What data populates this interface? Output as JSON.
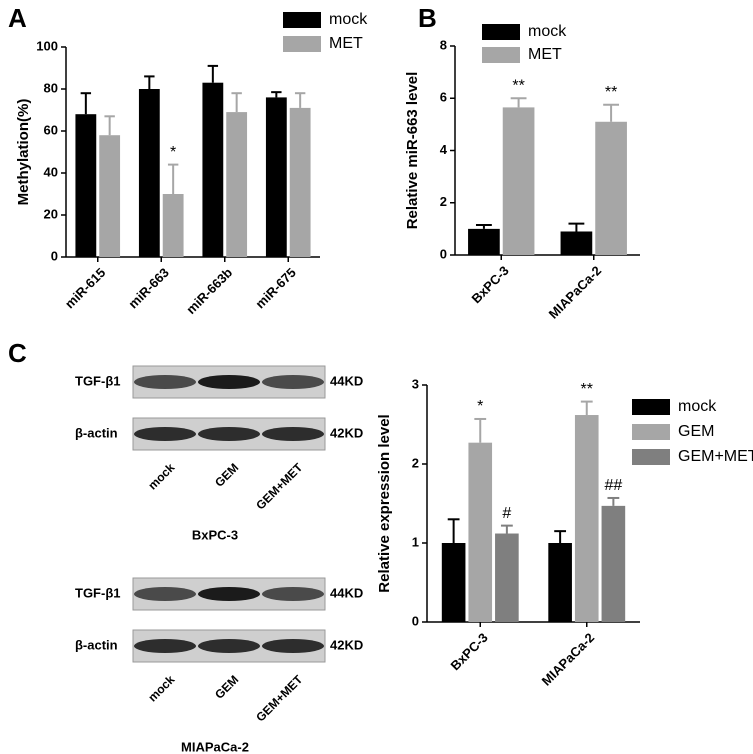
{
  "panel_labels": [
    "A",
    "B",
    "C"
  ],
  "chart_data": [
    {
      "type": "bar",
      "ylabel": "Methylation(%)",
      "categories": [
        "miR-615",
        "miR-663",
        "miR-663b",
        "miR-675"
      ],
      "series": [
        {
          "name": "mock",
          "color": "#000000",
          "values": [
            68,
            80,
            83,
            76
          ],
          "errors": [
            10,
            6,
            8,
            2.5
          ],
          "annotations": [
            null,
            null,
            null,
            null
          ]
        },
        {
          "name": "MET",
          "color": "#a6a6a6",
          "values": [
            58,
            30,
            69,
            71
          ],
          "errors": [
            9,
            14,
            9,
            7
          ],
          "annotations": [
            null,
            "*",
            null,
            null
          ]
        }
      ],
      "ylim": [
        0,
        100
      ],
      "yticks": [
        0,
        20,
        40,
        60,
        80,
        100
      ]
    },
    {
      "type": "bar",
      "ylabel": "Relative miR-663 level",
      "categories": [
        "BxPC-3",
        "MIAPaCa-2"
      ],
      "series": [
        {
          "name": "mock",
          "color": "#000000",
          "values": [
            1.0,
            0.9
          ],
          "errors": [
            0.15,
            0.3
          ],
          "annotations": [
            null,
            null
          ]
        },
        {
          "name": "MET",
          "color": "#a6a6a6",
          "values": [
            5.65,
            5.1
          ],
          "errors": [
            0.35,
            0.65
          ],
          "annotations": [
            "**",
            "**"
          ]
        }
      ],
      "ylim": [
        0,
        8
      ],
      "yticks": [
        0,
        2,
        4,
        6,
        8
      ]
    },
    {
      "type": "bar",
      "ylabel": "Relative expression level",
      "categories": [
        "BxPC-3",
        "MIAPaCa-2"
      ],
      "series": [
        {
          "name": "mock",
          "color": "#000000",
          "values": [
            1.0,
            1.0
          ],
          "errors": [
            0.3,
            0.15
          ],
          "annotations": [
            null,
            null
          ]
        },
        {
          "name": "GEM",
          "color": "#a6a6a6",
          "values": [
            2.27,
            2.62
          ],
          "errors": [
            0.3,
            0.17
          ],
          "annotations": [
            "*",
            "**"
          ]
        },
        {
          "name": "GEM+MET",
          "color": "#7f7f7f",
          "values": [
            1.12,
            1.47
          ],
          "errors": [
            0.1,
            0.1
          ],
          "annotations": [
            "#",
            "##"
          ]
        }
      ],
      "ylim": [
        0,
        3
      ],
      "yticks": [
        0,
        1,
        2,
        3
      ]
    }
  ],
  "blots": [
    {
      "cell_line": "BxPC-3",
      "rows": [
        {
          "label": "TGF-β1",
          "size": "44KD"
        },
        {
          "label": "β-actin",
          "size": "42KD"
        }
      ],
      "lanes": [
        "mock",
        "GEM",
        "GEM+MET"
      ]
    },
    {
      "cell_line": "MIAPaCa-2",
      "rows": [
        {
          "label": "TGF-β1",
          "size": "44KD"
        },
        {
          "label": "β-actin",
          "size": "42KD"
        }
      ],
      "lanes": [
        "mock",
        "GEM",
        "GEM+MET"
      ]
    }
  ]
}
